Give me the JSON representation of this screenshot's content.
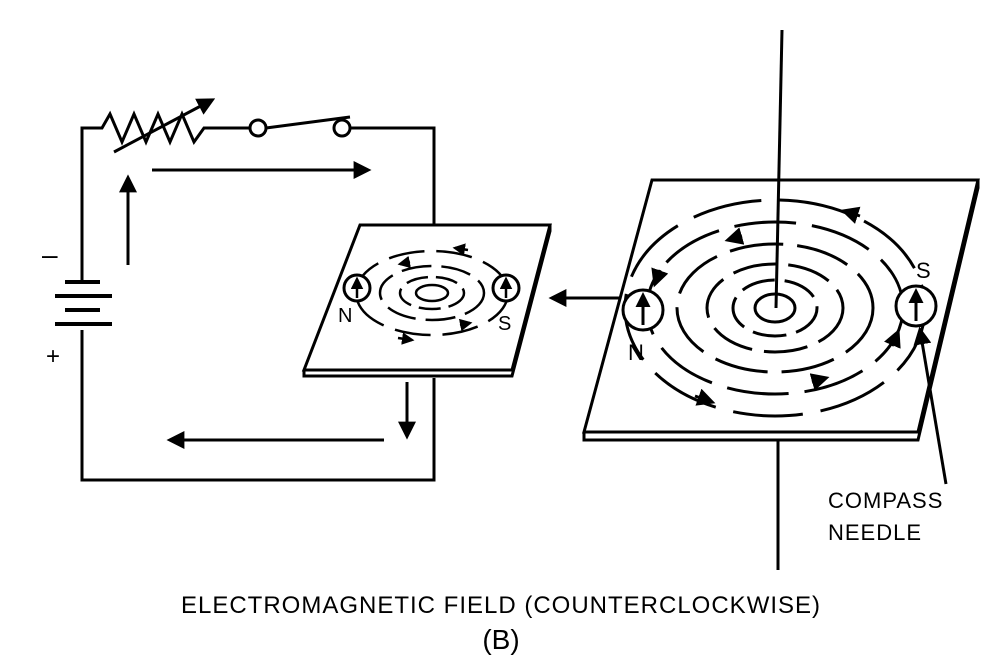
{
  "battery": {
    "minus": "–",
    "plus": "+"
  },
  "small_plate": {
    "north": "N",
    "south": "S"
  },
  "large_plate": {
    "north": "N",
    "south": "S"
  },
  "callout": {
    "line1": "COMPASS",
    "line2": "NEEDLE"
  },
  "caption": {
    "title": "ELECTROMAGNETIC  FIELD (COUNTERCLOCKWISE)",
    "label": "(B)"
  }
}
